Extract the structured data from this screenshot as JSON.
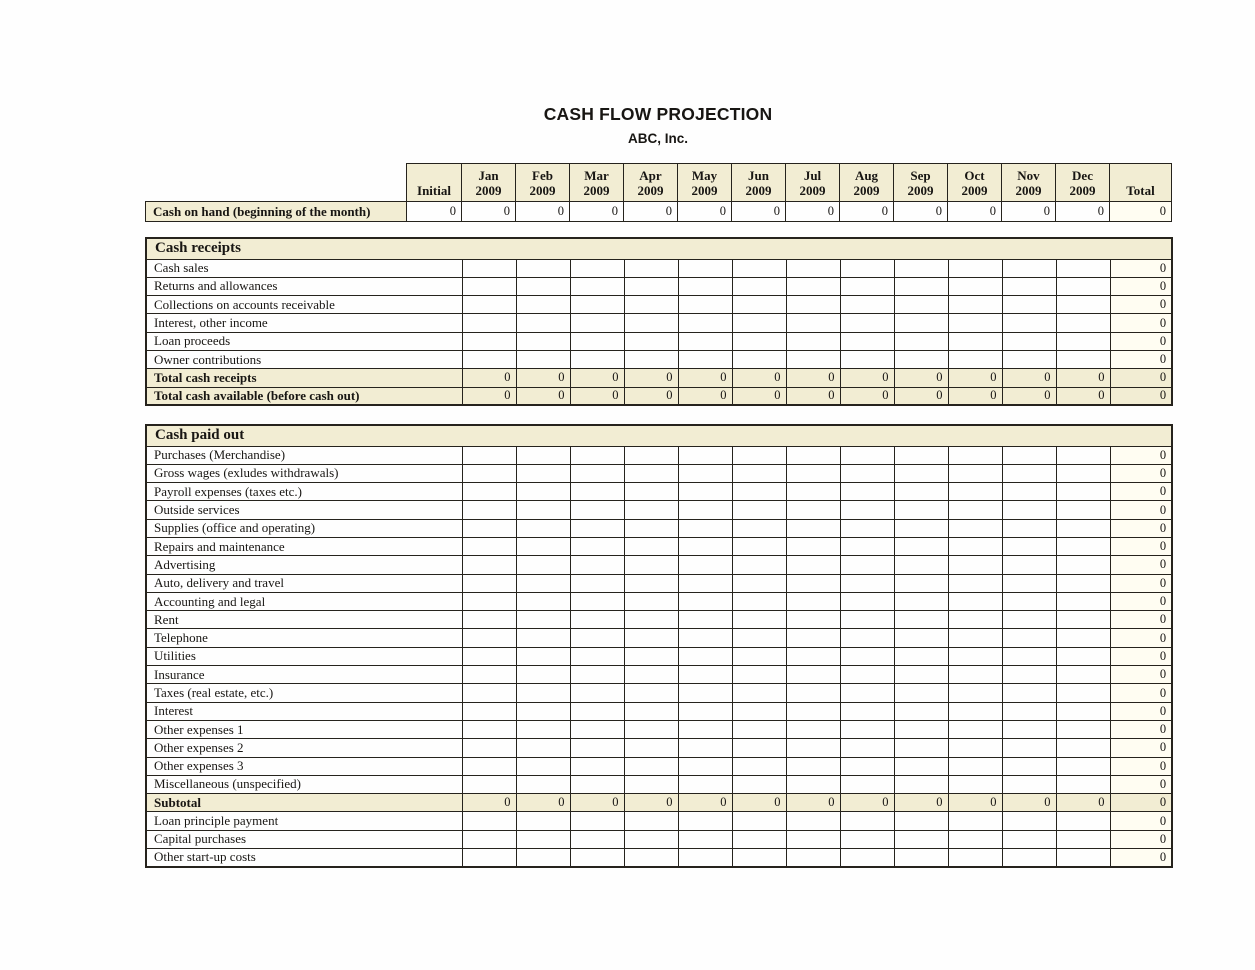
{
  "page": {
    "title": "CASH FLOW PROJECTION",
    "subtitle": "ABC, Inc."
  },
  "colors": {
    "header_bg": "#f2edd3",
    "border": "#26231d",
    "total_column_bg": "#fffdf2"
  },
  "columns": {
    "initial": "Initial",
    "total": "Total",
    "year": "2009",
    "months": [
      "Jan",
      "Feb",
      "Mar",
      "Apr",
      "May",
      "Jun",
      "Jul",
      "Aug",
      "Sep",
      "Oct",
      "Nov",
      "Dec"
    ]
  },
  "cash_on_hand_row": {
    "label": "Cash on hand (beginning of the month)",
    "initial": "0",
    "months": [
      "0",
      "0",
      "0",
      "0",
      "0",
      "0",
      "0",
      "0",
      "0",
      "0",
      "0",
      "0"
    ],
    "total": "0"
  },
  "sections": [
    {
      "title": "Cash receipts",
      "rows": [
        {
          "label": "Cash sales",
          "emphasis": false,
          "months": [
            "",
            "",
            "",
            "",
            "",
            "",
            "",
            "",
            "",
            "",
            "",
            ""
          ],
          "total": "0"
        },
        {
          "label": "Returns and allowances",
          "emphasis": false,
          "months": [
            "",
            "",
            "",
            "",
            "",
            "",
            "",
            "",
            "",
            "",
            "",
            ""
          ],
          "total": "0"
        },
        {
          "label": "Collections on accounts receivable",
          "emphasis": false,
          "months": [
            "",
            "",
            "",
            "",
            "",
            "",
            "",
            "",
            "",
            "",
            "",
            ""
          ],
          "total": "0"
        },
        {
          "label": "Interest, other income",
          "emphasis": false,
          "months": [
            "",
            "",
            "",
            "",
            "",
            "",
            "",
            "",
            "",
            "",
            "",
            ""
          ],
          "total": "0"
        },
        {
          "label": "Loan proceeds",
          "emphasis": false,
          "months": [
            "",
            "",
            "",
            "",
            "",
            "",
            "",
            "",
            "",
            "",
            "",
            ""
          ],
          "total": "0"
        },
        {
          "label": "Owner contributions",
          "emphasis": false,
          "months": [
            "",
            "",
            "",
            "",
            "",
            "",
            "",
            "",
            "",
            "",
            "",
            ""
          ],
          "total": "0"
        },
        {
          "label": "Total cash receipts",
          "emphasis": true,
          "months": [
            "0",
            "0",
            "0",
            "0",
            "0",
            "0",
            "0",
            "0",
            "0",
            "0",
            "0",
            "0"
          ],
          "total": "0"
        },
        {
          "label": "Total cash available (before cash out)",
          "emphasis": true,
          "months": [
            "0",
            "0",
            "0",
            "0",
            "0",
            "0",
            "0",
            "0",
            "0",
            "0",
            "0",
            "0"
          ],
          "total": "0"
        }
      ]
    },
    {
      "title": "Cash paid out",
      "rows": [
        {
          "label": "Purchases (Merchandise)",
          "emphasis": false,
          "months": [
            "",
            "",
            "",
            "",
            "",
            "",
            "",
            "",
            "",
            "",
            "",
            ""
          ],
          "total": "0"
        },
        {
          "label": "Gross wages (exludes withdrawals)",
          "emphasis": false,
          "months": [
            "",
            "",
            "",
            "",
            "",
            "",
            "",
            "",
            "",
            "",
            "",
            ""
          ],
          "total": "0"
        },
        {
          "label": "Payroll expenses (taxes etc.)",
          "emphasis": false,
          "months": [
            "",
            "",
            "",
            "",
            "",
            "",
            "",
            "",
            "",
            "",
            "",
            ""
          ],
          "total": "0"
        },
        {
          "label": "Outside services",
          "emphasis": false,
          "months": [
            "",
            "",
            "",
            "",
            "",
            "",
            "",
            "",
            "",
            "",
            "",
            ""
          ],
          "total": "0"
        },
        {
          "label": "Supplies (office and operating)",
          "emphasis": false,
          "months": [
            "",
            "",
            "",
            "",
            "",
            "",
            "",
            "",
            "",
            "",
            "",
            ""
          ],
          "total": "0"
        },
        {
          "label": "Repairs and maintenance",
          "emphasis": false,
          "months": [
            "",
            "",
            "",
            "",
            "",
            "",
            "",
            "",
            "",
            "",
            "",
            ""
          ],
          "total": "0"
        },
        {
          "label": "Advertising",
          "emphasis": false,
          "months": [
            "",
            "",
            "",
            "",
            "",
            "",
            "",
            "",
            "",
            "",
            "",
            ""
          ],
          "total": "0"
        },
        {
          "label": "Auto, delivery and travel",
          "emphasis": false,
          "months": [
            "",
            "",
            "",
            "",
            "",
            "",
            "",
            "",
            "",
            "",
            "",
            ""
          ],
          "total": "0"
        },
        {
          "label": "Accounting and legal",
          "emphasis": false,
          "months": [
            "",
            "",
            "",
            "",
            "",
            "",
            "",
            "",
            "",
            "",
            "",
            ""
          ],
          "total": "0"
        },
        {
          "label": "Rent",
          "emphasis": false,
          "months": [
            "",
            "",
            "",
            "",
            "",
            "",
            "",
            "",
            "",
            "",
            "",
            ""
          ],
          "total": "0"
        },
        {
          "label": "Telephone",
          "emphasis": false,
          "months": [
            "",
            "",
            "",
            "",
            "",
            "",
            "",
            "",
            "",
            "",
            "",
            ""
          ],
          "total": "0"
        },
        {
          "label": "Utilities",
          "emphasis": false,
          "months": [
            "",
            "",
            "",
            "",
            "",
            "",
            "",
            "",
            "",
            "",
            "",
            ""
          ],
          "total": "0"
        },
        {
          "label": "Insurance",
          "emphasis": false,
          "months": [
            "",
            "",
            "",
            "",
            "",
            "",
            "",
            "",
            "",
            "",
            "",
            ""
          ],
          "total": "0"
        },
        {
          "label": "Taxes (real estate, etc.)",
          "emphasis": false,
          "months": [
            "",
            "",
            "",
            "",
            "",
            "",
            "",
            "",
            "",
            "",
            "",
            ""
          ],
          "total": "0"
        },
        {
          "label": "Interest",
          "emphasis": false,
          "months": [
            "",
            "",
            "",
            "",
            "",
            "",
            "",
            "",
            "",
            "",
            "",
            ""
          ],
          "total": "0"
        },
        {
          "label": "Other expenses 1",
          "emphasis": false,
          "months": [
            "",
            "",
            "",
            "",
            "",
            "",
            "",
            "",
            "",
            "",
            "",
            ""
          ],
          "total": "0"
        },
        {
          "label": "Other expenses 2",
          "emphasis": false,
          "months": [
            "",
            "",
            "",
            "",
            "",
            "",
            "",
            "",
            "",
            "",
            "",
            ""
          ],
          "total": "0"
        },
        {
          "label": "Other expenses 3",
          "emphasis": false,
          "months": [
            "",
            "",
            "",
            "",
            "",
            "",
            "",
            "",
            "",
            "",
            "",
            ""
          ],
          "total": "0"
        },
        {
          "label": "Miscellaneous (unspecified)",
          "emphasis": false,
          "months": [
            "",
            "",
            "",
            "",
            "",
            "",
            "",
            "",
            "",
            "",
            "",
            ""
          ],
          "total": "0"
        },
        {
          "label": "Subtotal",
          "emphasis": true,
          "months": [
            "0",
            "0",
            "0",
            "0",
            "0",
            "0",
            "0",
            "0",
            "0",
            "0",
            "0",
            "0"
          ],
          "total": "0"
        },
        {
          "label": "Loan principle payment",
          "emphasis": false,
          "months": [
            "",
            "",
            "",
            "",
            "",
            "",
            "",
            "",
            "",
            "",
            "",
            ""
          ],
          "total": "0"
        },
        {
          "label": "Capital purchases",
          "emphasis": false,
          "months": [
            "",
            "",
            "",
            "",
            "",
            "",
            "",
            "",
            "",
            "",
            "",
            ""
          ],
          "total": "0"
        },
        {
          "label": "Other start-up costs",
          "emphasis": false,
          "months": [
            "",
            "",
            "",
            "",
            "",
            "",
            "",
            "",
            "",
            "",
            "",
            ""
          ],
          "total": "0"
        }
      ]
    }
  ]
}
